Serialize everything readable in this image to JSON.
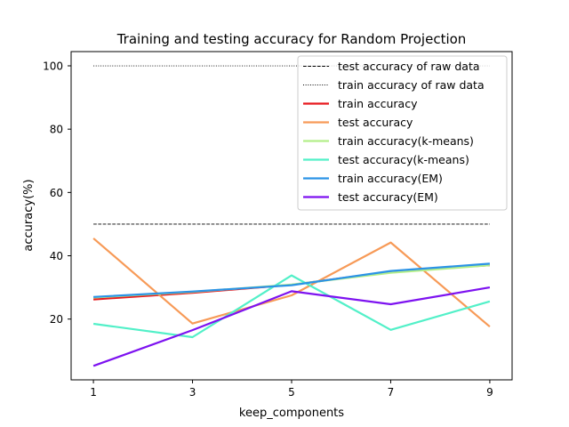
{
  "chart_data": {
    "type": "line",
    "title": "Training and testing accuracy for Random Projection",
    "xlabel": "keep_components",
    "ylabel": "accuracy(%)",
    "x": [
      1,
      3,
      5,
      7,
      9
    ],
    "xticks": [
      1,
      3,
      5,
      7,
      9
    ],
    "yticks": [
      20,
      40,
      60,
      80,
      100
    ],
    "xlim": [
      0.55,
      9.45
    ],
    "ylim": [
      0.8,
      104.5
    ],
    "grid": false,
    "legend_position": "top-right",
    "reference_lines": [
      {
        "name": "test accuracy of raw data",
        "y": 50,
        "style": "dashed",
        "color": "#000000"
      },
      {
        "name": "train accuracy of raw data",
        "y": 100,
        "style": "dotted",
        "color": "#000000"
      }
    ],
    "series": [
      {
        "name": "train accuracy",
        "color": "#e8191e",
        "values": [
          26.2,
          28.3,
          30.8,
          35.0,
          37.0
        ]
      },
      {
        "name": "test accuracy",
        "color": "#f79a57",
        "values": [
          45.5,
          18.6,
          27.5,
          44.2,
          17.6
        ]
      },
      {
        "name": "train accuracy(k-means)",
        "color": "#b4ef8a",
        "values": [
          26.8,
          28.6,
          30.9,
          34.6,
          37.0
        ]
      },
      {
        "name": "test accuracy(k-means)",
        "color": "#52f0c8",
        "values": [
          18.5,
          14.3,
          33.8,
          16.6,
          25.6
        ]
      },
      {
        "name": "train accuracy(EM)",
        "color": "#2b93e6",
        "values": [
          27.0,
          28.7,
          30.7,
          35.2,
          37.5
        ]
      },
      {
        "name": "test accuracy(EM)",
        "color": "#7d12f0",
        "values": [
          5.2,
          16.5,
          28.8,
          24.7,
          30.0
        ]
      }
    ]
  }
}
